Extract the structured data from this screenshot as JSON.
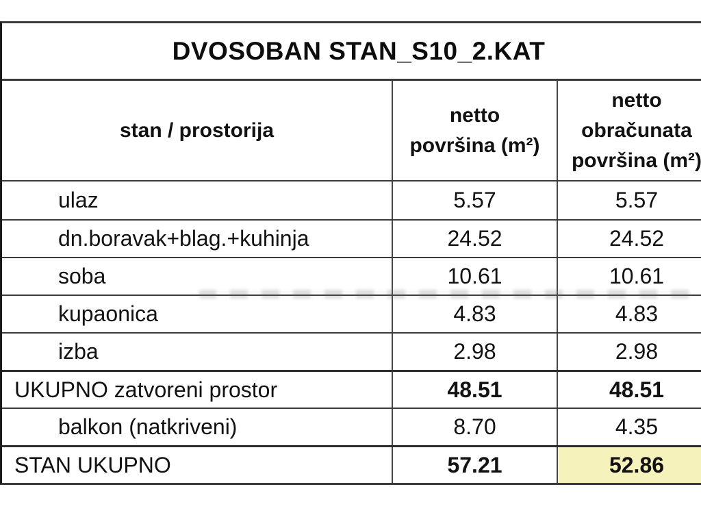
{
  "page": {
    "background": "#ffffff"
  },
  "title": "DVOSOBAN STAN_S10_2.KAT",
  "table": {
    "header": {
      "col1": "stan / prostorija",
      "col2_lines": [
        "netto",
        "površina (m²)"
      ],
      "col3_lines": [
        "netto",
        "obračunata",
        "površina (m²)"
      ]
    },
    "rows": [
      {
        "label": "ulaz",
        "netto": "5.57",
        "obracunata": "5.57"
      },
      {
        "label": "dn.boravak+blag.+kuhinja",
        "netto": "24.52",
        "obracunata": "24.52"
      },
      {
        "label": "soba",
        "netto": "10.61",
        "obracunata": "10.61"
      },
      {
        "label": "kupaonica",
        "netto": "4.83",
        "obracunata": "4.83"
      },
      {
        "label": "izba",
        "netto": "2.98",
        "obracunata": "2.98"
      },
      {
        "label": "UKUPNO zatvoreni prostor",
        "netto": "48.51",
        "obracunata": "48.51"
      },
      {
        "label": "balkon (natkriveni)",
        "netto": "8.70",
        "obracunata": "4.35"
      },
      {
        "label": "STAN UKUPNO",
        "netto": "57.21",
        "obracunata": "52.86"
      }
    ]
  },
  "colors": {
    "highlight": "#F6F2BC",
    "grid": "#3a3a3a",
    "text": "#121212"
  }
}
